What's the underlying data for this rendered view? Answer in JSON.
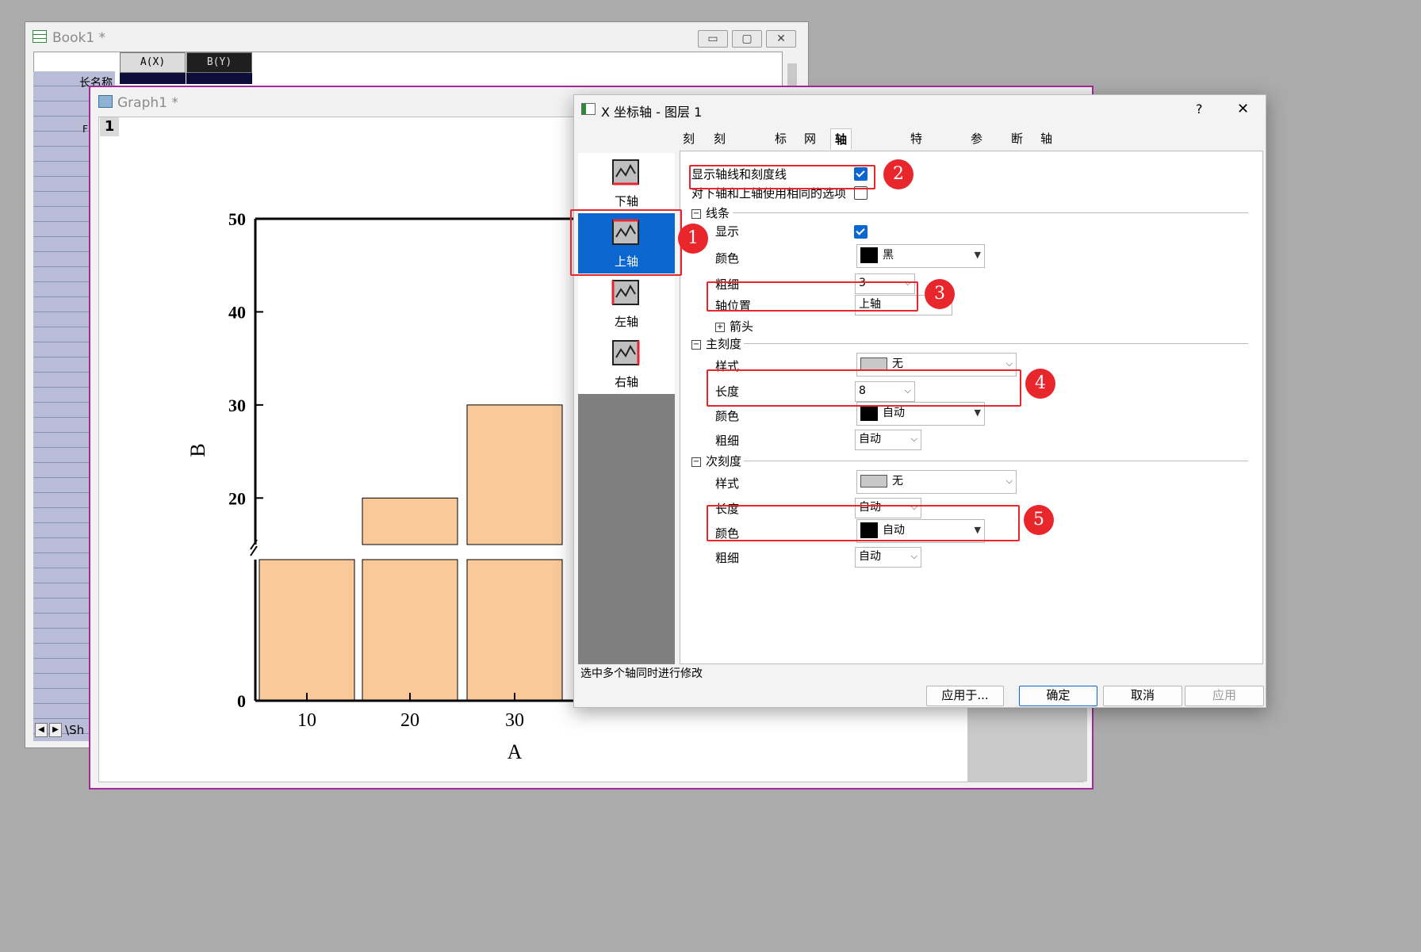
{
  "book": {
    "title": "Book1 *",
    "col_a": "A(X)",
    "col_b": "B(Y)",
    "long_name_label": "长名称",
    "row_label_f": "F",
    "sheet_tab": "Sh"
  },
  "graph": {
    "title": "Graph1 *",
    "layer": "1"
  },
  "chart_data": {
    "type": "bar",
    "categories": [
      "10",
      "20",
      "30"
    ],
    "values": [
      15,
      20,
      30
    ],
    "xlabel": "A",
    "ylabel": "B",
    "yticks_upper": [
      "20",
      "30",
      "40",
      "50"
    ],
    "yticks_lower": [
      "0"
    ],
    "axis_break": true,
    "bar_color": "#f9c99a",
    "upper_ylim": [
      15,
      50
    ],
    "lower_ylim": [
      0,
      15
    ]
  },
  "dialog": {
    "title": "X 坐标轴 - 图层 1",
    "help": "?",
    "close": "✕",
    "axes": [
      {
        "label": "下轴"
      },
      {
        "label": "上轴"
      },
      {
        "label": "左轴"
      },
      {
        "label": "右轴"
      }
    ],
    "tabs": [
      "刻度",
      "刻度线标签",
      "标题",
      "网格",
      "轴线和刻度线",
      "特殊刻度线",
      "参照线",
      "断点",
      "轴须"
    ],
    "show_axis_label": "显示轴线和刻度线",
    "same_options_label": "对下轴和上轴使用相同的选项",
    "line_section": "线条",
    "show_label": "显示",
    "color_label": "颜色",
    "color_value": "黑",
    "thickness_label": "粗细",
    "thickness_value": "3",
    "axis_pos_label": "轴位置",
    "axis_pos_value": "上轴",
    "arrow_label": "箭头",
    "major_section": "主刻度",
    "style_label": "样式",
    "style_value": "无",
    "length_label": "长度",
    "major_length": "8",
    "major_color": "自动",
    "major_thickness": "自动",
    "minor_section": "次刻度",
    "minor_style": "无",
    "minor_length": "自动",
    "minor_color": "自动",
    "minor_thickness": "自动",
    "status": "选中多个轴同时进行修改",
    "btn_apply_to": "应用于...",
    "btn_ok": "确定",
    "btn_cancel": "取消",
    "btn_apply": "应用"
  },
  "annotations": [
    "1",
    "2",
    "3",
    "4",
    "5"
  ],
  "colors": {
    "accent": "#0b66d0",
    "annotation_red": "#e8262b",
    "graph_border": "#a12b9b"
  }
}
